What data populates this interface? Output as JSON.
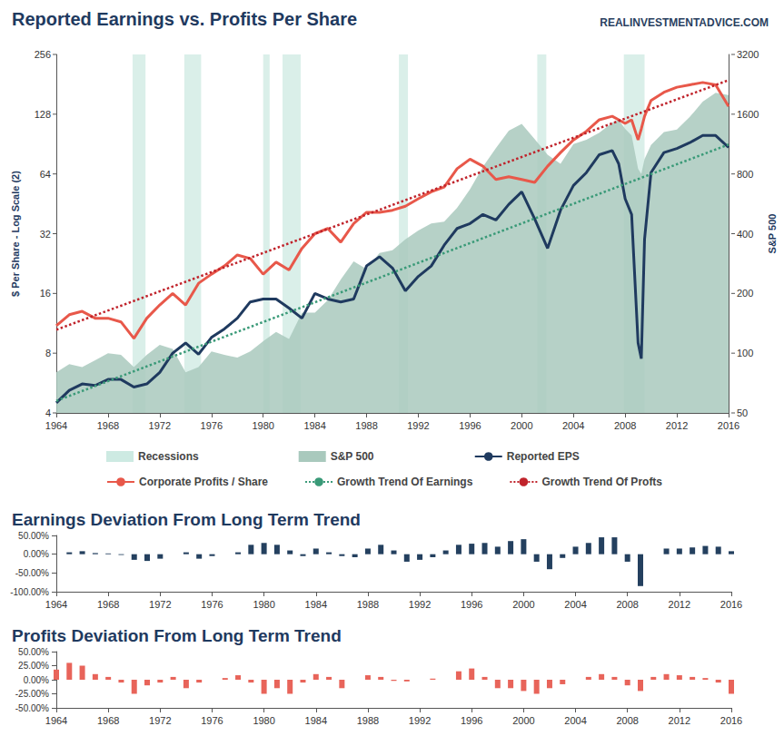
{
  "chart_data": [
    {
      "type": "line",
      "title": "Reported Earnings vs. Profits Per Share",
      "source": "REALINVESTMENTADVICE.COM",
      "y_label": "$ Per Share - Log Scale (2)",
      "y2_label": "S&P 500",
      "log": "y",
      "grid": false,
      "legend": "bottom",
      "x": [
        1964,
        1965,
        1966,
        1967,
        1968,
        1969,
        1970,
        1971,
        1972,
        1973,
        1974,
        1975,
        1976,
        1977,
        1978,
        1979,
        1980,
        1981,
        1982,
        1983,
        1984,
        1985,
        1986,
        1987,
        1988,
        1989,
        1990,
        1991,
        1992,
        1993,
        1994,
        1995,
        1996,
        1997,
        1998,
        1999,
        2000,
        2001,
        2002,
        2003,
        2004,
        2005,
        2006,
        2007,
        2007.5,
        2008,
        2008.5,
        2009,
        2009.25,
        2009.5,
        2010,
        2011,
        2012,
        2013,
        2014,
        2015,
        2016
      ],
      "xlim": [
        1964,
        2016
      ],
      "xticks": [
        1964,
        1968,
        1972,
        1976,
        1980,
        1984,
        1988,
        1992,
        1996,
        2000,
        2004,
        2008,
        2012,
        2016
      ],
      "ylim": [
        4,
        256
      ],
      "yticks": [
        4,
        8,
        16,
        32,
        64,
        128,
        256
      ],
      "y2lim": [
        50,
        3200
      ],
      "y2ticks": [
        50,
        100,
        200,
        400,
        800,
        1600,
        3200
      ],
      "recessions": {
        "name": "Recessions",
        "color": "#cdeae2",
        "periods": [
          [
            1969.9,
            1970.9
          ],
          [
            1973.9,
            1975.2
          ],
          [
            1980.0,
            1980.5
          ],
          [
            1981.5,
            1982.9
          ],
          [
            1990.5,
            1991.2
          ],
          [
            2001.2,
            2001.9
          ],
          [
            2007.9,
            2009.5
          ]
        ]
      },
      "series": [
        {
          "name": "S&P 500",
          "type": "area",
          "axis": "y2",
          "color": "#a9c9bd",
          "values": [
            80,
            88,
            85,
            92,
            100,
            98,
            85,
            98,
            110,
            105,
            80,
            85,
            102,
            98,
            95,
            102,
            115,
            128,
            118,
            160,
            160,
            185,
            235,
            290,
            265,
            320,
            330,
            375,
            415,
            450,
            460,
            540,
            670,
            870,
            1080,
            1320,
            1430,
            1200,
            1000,
            900,
            1130,
            1190,
            1290,
            1450,
            1500,
            1350,
            1250,
            850,
            800,
            950,
            1120,
            1300,
            1340,
            1550,
            1850,
            2050,
            2000
          ]
        },
        {
          "name": "Reported EPS",
          "color": "#1f3a5f",
          "line_style": "solid",
          "values": [
            4.5,
            5.2,
            5.6,
            5.5,
            5.9,
            5.9,
            5.4,
            5.6,
            6.4,
            8.0,
            9.0,
            7.9,
            9.6,
            10.6,
            12.0,
            14.5,
            15.0,
            15.0,
            13.5,
            12.0,
            16.0,
            15.0,
            14.5,
            15.0,
            22.0,
            24.5,
            21.5,
            16.5,
            19.5,
            22.0,
            28.0,
            34.0,
            36.0,
            40.0,
            37.5,
            45.0,
            52.0,
            38.0,
            27.0,
            42.0,
            56.0,
            65.0,
            80.0,
            84.0,
            72,
            48,
            40,
            9,
            7.5,
            30,
            65,
            82,
            86,
            92,
            100,
            100,
            87
          ]
        },
        {
          "name": "Corporate Profits / Share",
          "color": "#e8584a",
          "line_style": "solid",
          "values": [
            11,
            12.5,
            13,
            12,
            12,
            11.5,
            9.5,
            12,
            14,
            16,
            14,
            18,
            20,
            22,
            25,
            24,
            20,
            23,
            21,
            27,
            32,
            34,
            29,
            36,
            41,
            41,
            42,
            44,
            48,
            52,
            55,
            68,
            76,
            70,
            60,
            62,
            60,
            58,
            70,
            82,
            95,
            105,
            120,
            125,
            120,
            115,
            120,
            95,
            108,
            125,
            150,
            165,
            175,
            180,
            185,
            180,
            140
          ]
        },
        {
          "name": "Growth Trend Of Earnings",
          "color": "#3a9a78",
          "line_style": "dotted",
          "x": [
            1964,
            2016
          ],
          "values": [
            4.6,
            90
          ]
        },
        {
          "name": "Growth Trend Of Profts",
          "color": "#c0232b",
          "line_style": "dotted",
          "x": [
            1964,
            2016
          ],
          "values": [
            10.5,
            190
          ]
        }
      ]
    },
    {
      "type": "bar",
      "title": "Earnings Deviation From Long Term Trend",
      "grid": false,
      "color": "#24405f",
      "x": [
        1964,
        1965,
        1966,
        1967,
        1968,
        1969,
        1970,
        1971,
        1972,
        1973,
        1974,
        1975,
        1976,
        1977,
        1978,
        1979,
        1980,
        1981,
        1982,
        1983,
        1984,
        1985,
        1986,
        1987,
        1988,
        1989,
        1990,
        1991,
        1992,
        1993,
        1994,
        1995,
        1996,
        1997,
        1998,
        1999,
        2000,
        2001,
        2002,
        2003,
        2004,
        2005,
        2006,
        2007,
        2008,
        2009,
        2010,
        2011,
        2012,
        2013,
        2014,
        2015,
        2016
      ],
      "values": [
        0,
        5,
        8,
        3,
        2,
        -2,
        -15,
        -18,
        -12,
        0,
        5,
        -12,
        -5,
        0,
        5,
        25,
        30,
        25,
        10,
        -5,
        15,
        5,
        -5,
        -8,
        15,
        25,
        10,
        -20,
        -15,
        -8,
        10,
        25,
        28,
        30,
        20,
        35,
        40,
        -20,
        -40,
        -10,
        20,
        30,
        45,
        45,
        -20,
        -85,
        0,
        15,
        15,
        18,
        22,
        20,
        8
      ],
      "xlim": [
        1964,
        2016
      ],
      "xticks": [
        1964,
        1968,
        1972,
        1976,
        1980,
        1984,
        1988,
        1992,
        1996,
        2000,
        2004,
        2008,
        2012,
        2016
      ],
      "ylim": [
        -100,
        50
      ],
      "yticks": [
        {
          "value": -100,
          "label": "-100.00%"
        },
        {
          "value": -50,
          "label": "-50.00%"
        },
        {
          "value": 0,
          "label": "0.00%"
        },
        {
          "value": 50,
          "label": "50.00%"
        }
      ]
    },
    {
      "type": "bar",
      "title": "Profits Deviation From Long Term Trend",
      "grid": false,
      "color": "#e8645a",
      "x": [
        1964,
        1965,
        1966,
        1967,
        1968,
        1969,
        1970,
        1971,
        1972,
        1973,
        1974,
        1975,
        1976,
        1977,
        1978,
        1979,
        1980,
        1981,
        1982,
        1983,
        1984,
        1985,
        1986,
        1987,
        1988,
        1989,
        1990,
        1991,
        1992,
        1993,
        1994,
        1995,
        1996,
        1997,
        1998,
        1999,
        2000,
        2001,
        2002,
        2003,
        2004,
        2005,
        2006,
        2007,
        2008,
        2009,
        2010,
        2011,
        2012,
        2013,
        2014,
        2015,
        2016
      ],
      "values": [
        18,
        30,
        25,
        10,
        5,
        -5,
        -25,
        -10,
        -5,
        5,
        -15,
        -5,
        0,
        3,
        8,
        -5,
        -25,
        -15,
        -25,
        -5,
        10,
        5,
        -15,
        0,
        8,
        5,
        -2,
        -3,
        0,
        2,
        0,
        15,
        20,
        5,
        -15,
        -15,
        -20,
        -25,
        -15,
        -8,
        0,
        5,
        10,
        5,
        -10,
        -20,
        5,
        10,
        8,
        5,
        3,
        -5,
        -25
      ],
      "xlim": [
        1964,
        2016
      ],
      "xticks": [
        1964,
        1968,
        1972,
        1976,
        1980,
        1984,
        1988,
        1992,
        1996,
        2000,
        2004,
        2008,
        2012,
        2016
      ],
      "ylim": [
        -50,
        50
      ],
      "yticks": [
        {
          "value": -50,
          "label": "-50.00%"
        },
        {
          "value": -25,
          "label": "-25.00%"
        },
        {
          "value": 0,
          "label": "0.00%"
        },
        {
          "value": 25,
          "label": "25.00%"
        },
        {
          "value": 50,
          "label": "50.00%"
        }
      ]
    }
  ]
}
